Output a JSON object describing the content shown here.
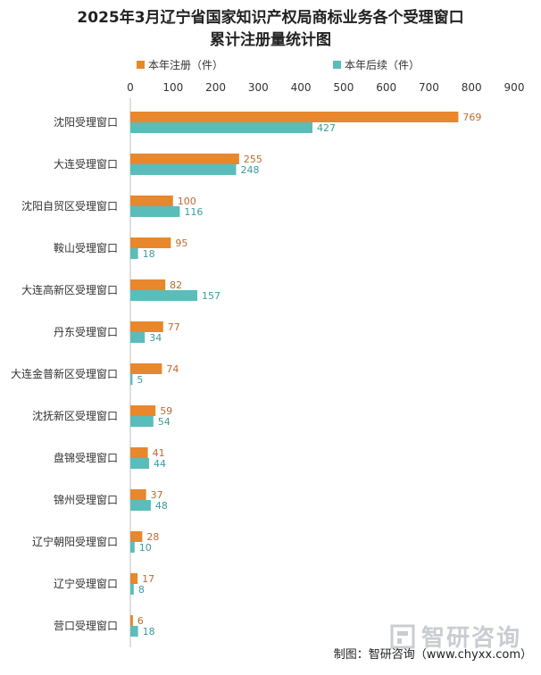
{
  "chart_data": {
    "type": "bar",
    "orientation": "horizontal",
    "title_lines": [
      "2025年3月辽宁省国家知识产权局商标业务各个受理窗口",
      "累计注册量统计图"
    ],
    "categories": [
      "沈阳受理窗口",
      "大连受理窗口",
      "沈阳自贸区受理窗口",
      "鞍山受理窗口",
      "大连高新区受理窗口",
      "丹东受理窗口",
      "大连金普新区受理窗口",
      "沈抚新区受理窗口",
      "盘锦受理窗口",
      "锦州受理窗口",
      "辽宁朝阳受理窗口",
      "辽宁受理窗口",
      "营口受理窗口"
    ],
    "series": [
      {
        "name": "本年注册（件）",
        "color": "#e8872c",
        "values": [
          769,
          255,
          100,
          95,
          82,
          77,
          74,
          59,
          41,
          37,
          28,
          17,
          6
        ]
      },
      {
        "name": "本年后续（件）",
        "color": "#5bbdb9",
        "values": [
          427,
          248,
          116,
          18,
          157,
          34,
          5,
          54,
          44,
          48,
          10,
          8,
          18
        ]
      }
    ],
    "xlim": [
      0,
      900
    ],
    "xticks": [
      0,
      100,
      200,
      300,
      400,
      500,
      600,
      700,
      800,
      900
    ],
    "xaxis_position": "top",
    "legend_position": "top",
    "grid": false,
    "label_colors": [
      "#c0692b",
      "#3a9c99"
    ]
  },
  "footer": "制图：智研咨询（www.chyxx.com）",
  "watermark": "智研咨询"
}
